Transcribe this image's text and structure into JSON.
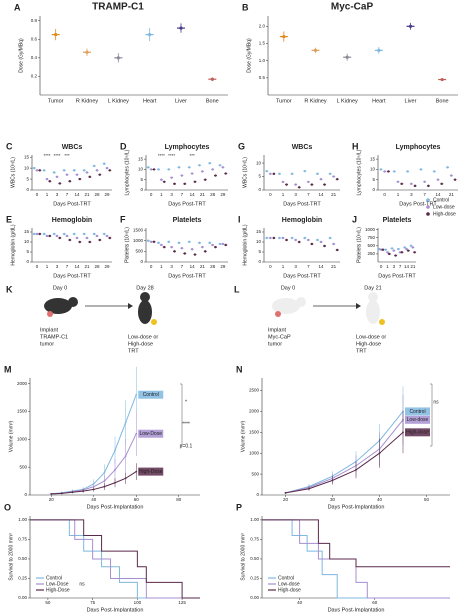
{
  "columns": [
    "TRAMP-C1",
    "Myc-CaP"
  ],
  "schematics": [
    {
      "label": "K",
      "start": "Day 0",
      "end": "Day 28",
      "implant": [
        "Implant",
        "TRAMP-C1",
        "tumor"
      ],
      "treat": [
        "Low-dose or",
        "High-dose",
        "TRT"
      ]
    },
    {
      "label": "L",
      "start": "Day 0",
      "end": "Day 21",
      "implant": [
        "Implant",
        "Myc-CaP",
        "tumor"
      ],
      "treat": [
        "Low-dose or",
        "High-dose",
        "TRT"
      ]
    }
  ],
  "chart_data": [
    {
      "type": "dot",
      "label": "A",
      "ylabel": "Dose (Gy/MBq)",
      "categories": [
        "Tumor",
        "R Kidney",
        "L Kidney",
        "Heart",
        "Liver",
        "Bone"
      ],
      "values": [
        0.65,
        0.46,
        0.4,
        0.65,
        0.72,
        0.17
      ],
      "errors": [
        0.06,
        0.04,
        0.05,
        0.07,
        0.05,
        0.02
      ],
      "colors": [
        "#e08a1e",
        "#e0a060",
        "#8a8a9a",
        "#7fb8e0",
        "#4a3a8a",
        "#c0605a"
      ],
      "ylim": [
        0,
        0.85
      ],
      "yticks": [
        0.2,
        0.4,
        0.6,
        0.8
      ]
    },
    {
      "type": "dot",
      "label": "B",
      "ylabel": "Dose (Gy/MBq)",
      "categories": [
        "Tumor",
        "R Kidney",
        "L Kidney",
        "Heart",
        "Liver",
        "Bone"
      ],
      "values": [
        1.7,
        1.3,
        1.1,
        1.3,
        2.0,
        0.45
      ],
      "errors": [
        0.15,
        0.08,
        0.1,
        0.1,
        0.1,
        0.04
      ],
      "colors": [
        "#e08a1e",
        "#e0a060",
        "#8a8a9a",
        "#7fb8e0",
        "#4a3a8a",
        "#c0605a"
      ],
      "ylim": [
        0,
        2.3
      ],
      "yticks": [
        {
          "value": 0.5,
          "label": "0.5"
        },
        {
          "value": 1,
          "label": "1.0"
        },
        {
          "value": 1.5,
          "label": "1.5"
        },
        {
          "value": 2,
          "label": "2.0"
        }
      ]
    },
    {
      "type": "groupdot",
      "label": "C",
      "title": "WBCs",
      "ylabel": "WBCs (10⁹/L)",
      "xlabel": "Days Post-TRT",
      "categories": [
        "0",
        "1",
        "3",
        "7",
        "14",
        "21",
        "28",
        "29"
      ],
      "ylim": [
        0,
        16
      ],
      "yticks": [
        0,
        5,
        10,
        15
      ],
      "series": [
        {
          "name": "Control",
          "color": "#7fb8e0",
          "values": [
            10,
            9,
            8,
            9,
            9,
            9,
            11,
            12
          ]
        },
        {
          "name": "Low-dose",
          "color": "#a58fd0",
          "values": [
            9,
            5,
            6,
            7,
            7,
            8,
            9,
            10
          ]
        },
        {
          "name": "High-dose",
          "color": "#5a2a4a",
          "values": [
            9,
            4,
            3,
            4,
            5,
            6,
            7,
            9
          ]
        }
      ],
      "annotations": [
        {
          "category": "1",
          "text": "****"
        },
        {
          "category": "3",
          "text": "****"
        },
        {
          "category": "7",
          "text": "***"
        }
      ]
    },
    {
      "type": "groupdot",
      "label": "D",
      "title": "Lymphocytes",
      "ylabel": "Lymphocytes (10⁹/L)",
      "xlabel": "Days Post-TRT",
      "categories": [
        "0",
        "1",
        "3",
        "7",
        "14",
        "21",
        "28",
        "29"
      ],
      "ylim": [
        0,
        17
      ],
      "yticks": [
        0,
        5,
        10,
        15
      ],
      "series": [
        {
          "name": "Control",
          "color": "#7fb8e0",
          "values": [
            11,
            10,
            10,
            11,
            11,
            12,
            13,
            12
          ]
        },
        {
          "name": "Low-dose",
          "color": "#a58fd0",
          "values": [
            10,
            5,
            6,
            7,
            8,
            9,
            10,
            11
          ]
        },
        {
          "name": "High-dose",
          "color": "#5a2a4a",
          "values": [
            10,
            4,
            3,
            3,
            4,
            5,
            7,
            8
          ]
        }
      ],
      "annotations": [
        {
          "category": "1",
          "text": "****"
        },
        {
          "category": "3",
          "text": "****"
        },
        {
          "category": "14",
          "text": "***"
        }
      ]
    },
    {
      "type": "groupdot",
      "label": "G",
      "title": "WBCs",
      "ylabel": "WBCs (10⁹/L)",
      "xlabel": "Days Post-TRT",
      "categories": [
        "0",
        "1",
        "3",
        "7",
        "14",
        "21"
      ],
      "ylim": [
        0,
        13
      ],
      "yticks": [
        0,
        5,
        10
      ],
      "series": [
        {
          "name": "Control",
          "color": "#7fb8e0",
          "values": [
            7,
            6,
            6,
            7,
            6,
            6
          ]
        },
        {
          "name": "Low-dose",
          "color": "#a58fd0",
          "values": [
            6,
            3,
            2,
            3,
            4,
            5
          ]
        },
        {
          "name": "High-dose",
          "color": "#5a2a4a",
          "values": [
            6,
            2,
            1,
            2,
            2,
            4
          ]
        }
      ]
    },
    {
      "type": "groupdot",
      "label": "H",
      "title": "Lymphocytes",
      "ylabel": "Lymphocytes (10⁹/L)",
      "xlabel": "Days Post-TRT",
      "categories": [
        "0",
        "1",
        "3",
        "7",
        "14",
        "21"
      ],
      "ylim": [
        0,
        17
      ],
      "yticks": [
        0,
        5,
        10,
        15
      ],
      "series": [
        {
          "name": "Control",
          "color": "#7fb8e0",
          "values": [
            10,
            9,
            9,
            10,
            9,
            11
          ]
        },
        {
          "name": "Low-dose",
          "color": "#a58fd0",
          "values": [
            9,
            4,
            3,
            4,
            5,
            7
          ]
        },
        {
          "name": "High-dose",
          "color": "#5a2a4a",
          "values": [
            9,
            3,
            2,
            2,
            3,
            5
          ]
        }
      ]
    },
    {
      "type": "groupdot",
      "label": "E",
      "title": "Hemoglobin",
      "ylabel": "Hemoglobin (g/dL)",
      "xlabel": "Days Post-TRT",
      "categories": [
        "0",
        "1",
        "3",
        "7",
        "14",
        "21",
        "28",
        "29"
      ],
      "ylim": [
        0,
        17
      ],
      "yticks": [
        0,
        5,
        10,
        15
      ],
      "series": [
        {
          "name": "Control",
          "color": "#7fb8e0",
          "values": [
            14,
            14,
            14,
            14,
            14,
            14,
            14,
            14
          ]
        },
        {
          "name": "Low-dose",
          "color": "#a58fd0",
          "values": [
            14,
            13,
            13,
            13,
            12,
            12,
            13,
            13
          ]
        },
        {
          "name": "High-dose",
          "color": "#5a2a4a",
          "values": [
            14,
            13,
            12,
            11,
            10,
            10,
            11,
            12
          ]
        }
      ]
    },
    {
      "type": "groupdot",
      "label": "F",
      "title": "Platelets",
      "ylabel": "Platelets (10⁹/L)",
      "xlabel": "Days Post-TRT",
      "categories": [
        "0",
        "1",
        "3",
        "7",
        "14",
        "21",
        "28",
        "29"
      ],
      "ylim": [
        0,
        1600
      ],
      "yticks": [
        0,
        500,
        1000,
        1500
      ],
      "series": [
        {
          "name": "Control",
          "color": "#7fb8e0",
          "values": [
            1000,
            900,
            950,
            900,
            950,
            900,
            900,
            850
          ]
        },
        {
          "name": "Low-dose",
          "color": "#a58fd0",
          "values": [
            950,
            800,
            700,
            650,
            600,
            700,
            800,
            850
          ]
        },
        {
          "name": "High-dose",
          "color": "#5a2a4a",
          "values": [
            950,
            700,
            500,
            400,
            350,
            500,
            700,
            800
          ]
        }
      ]
    },
    {
      "type": "groupdot",
      "label": "I",
      "title": "Hemoglobin",
      "ylabel": "Hemoglobin (g/dL)",
      "xlabel": "Days Post-TRT",
      "categories": [
        "0",
        "1",
        "3",
        "7",
        "14",
        "21"
      ],
      "ylim": [
        0,
        17
      ],
      "yticks": [
        0,
        5,
        10,
        15
      ],
      "series": [
        {
          "name": "Control",
          "color": "#7fb8e0",
          "values": [
            12,
            12,
            12,
            12,
            11,
            12
          ]
        },
        {
          "name": "Low-dose",
          "color": "#a58fd0",
          "values": [
            12,
            12,
            11,
            11,
            10,
            9
          ]
        },
        {
          "name": "High-dose",
          "color": "#5a2a4a",
          "values": [
            12,
            11,
            10,
            9,
            8,
            6
          ]
        }
      ]
    },
    {
      "type": "groupdot",
      "label": "J",
      "title": "Platelets",
      "ylabel": "Platelets (10⁹/L)",
      "xlabel": "Days Post-TRT",
      "legend": "right",
      "categories": [
        "0",
        "1",
        "3",
        "7",
        "14",
        "21"
      ],
      "ylim": [
        0,
        1050
      ],
      "yticks": [
        250,
        500,
        750,
        1000
      ],
      "series": [
        {
          "name": "Control",
          "color": "#7fb8e0",
          "values": [
            400,
            380,
            420,
            400,
            450,
            500
          ]
        },
        {
          "name": "Low-dose",
          "color": "#a58fd0",
          "values": [
            380,
            300,
            350,
            300,
            400,
            450
          ]
        },
        {
          "name": "High-dose",
          "color": "#5a2a4a",
          "values": [
            380,
            250,
            200,
            300,
            350,
            300
          ]
        }
      ]
    },
    {
      "type": "line",
      "label": "M",
      "ylabel": "Volume (mm³)",
      "xlabel": "Days Post-Implantation",
      "x": [
        20,
        25,
        30,
        35,
        40,
        45,
        50,
        55,
        60
      ],
      "xlim": [
        10,
        90
      ],
      "xticks": [
        20,
        40,
        60,
        80
      ],
      "ylim": [
        0,
        2100
      ],
      "yticks": [
        0,
        500,
        1000,
        1500,
        2000
      ],
      "series": [
        {
          "name": "Control",
          "color": "#7fb8e0",
          "values": [
            20,
            40,
            70,
            100,
            200,
            400,
            800,
            1300,
            1800
          ],
          "errors": [
            10,
            20,
            30,
            40,
            80,
            150,
            250,
            400,
            500
          ]
        },
        {
          "name": "Low-Dose",
          "color": "#a58fd0",
          "values": [
            20,
            30,
            60,
            90,
            150,
            250,
            450,
            700,
            1100
          ],
          "errors": [
            10,
            15,
            25,
            35,
            60,
            100,
            200,
            300,
            400
          ]
        },
        {
          "name": "High-Dose",
          "color": "#5a2a4a",
          "values": [
            20,
            30,
            50,
            70,
            100,
            150,
            220,
            300,
            420
          ],
          "errors": [
            10,
            15,
            20,
            30,
            40,
            60,
            80,
            100,
            150
          ]
        }
      ],
      "annotations": [
        "*",
        "****",
        "p=0.1"
      ]
    },
    {
      "type": "line",
      "label": "N",
      "ylabel": "Volume (mm³)",
      "xlabel": "Days Post-Implantation",
      "x": [
        20,
        25,
        30,
        35,
        40,
        45
      ],
      "xlim": [
        15,
        55
      ],
      "xticks": [
        20,
        30,
        40,
        50
      ],
      "ylim": [
        0,
        2800
      ],
      "yticks": [
        0,
        500,
        1000,
        1500,
        2000,
        2500
      ],
      "series": [
        {
          "name": "Control",
          "color": "#7fb8e0",
          "values": [
            50,
            200,
            450,
            800,
            1300,
            2000
          ],
          "errors": [
            20,
            60,
            120,
            250,
            400,
            600
          ]
        },
        {
          "name": "Low-dose",
          "color": "#a58fd0",
          "values": [
            50,
            180,
            400,
            700,
            1100,
            1800
          ],
          "errors": [
            20,
            60,
            120,
            250,
            400,
            600
          ]
        },
        {
          "name": "High-dose",
          "color": "#5a2a4a",
          "values": [
            50,
            150,
            350,
            600,
            1000,
            1500
          ],
          "errors": [
            20,
            50,
            100,
            200,
            350,
            500
          ]
        }
      ],
      "annotations": [
        "ns"
      ]
    },
    {
      "type": "step",
      "label": "O",
      "ylabel": "Survival to 2000 mm³",
      "xlabel": "Days Post-Implantation",
      "xlim": [
        40,
        135
      ],
      "xticks": [
        50,
        75,
        100,
        125
      ],
      "ylim": [
        0,
        1.05
      ],
      "yticks": [
        {
          "value": 0,
          "label": "0.00"
        },
        {
          "value": 0.25,
          "label": "0.25"
        },
        {
          "value": 0.5,
          "label": "0.50"
        },
        {
          "value": 0.75,
          "label": "0.75"
        },
        {
          "value": 1,
          "label": "1.00"
        }
      ],
      "series": [
        {
          "name": "Control",
          "color": "#7fb8e0",
          "x": [
            40,
            62,
            70,
            80,
            90,
            100
          ],
          "values": [
            1,
            0.8,
            0.6,
            0.4,
            0.2,
            0
          ]
        },
        {
          "name": "Low-Dose",
          "color": "#a58fd0",
          "x": [
            40,
            65,
            75,
            85,
            105
          ],
          "values": [
            1,
            0.75,
            0.5,
            0.25,
            0
          ]
        },
        {
          "name": "High-Dose",
          "color": "#5a2a4a",
          "x": [
            40,
            70,
            80,
            100,
            105,
            125
          ],
          "values": [
            1,
            0.8,
            0.6,
            0.4,
            0.2,
            0
          ]
        }
      ],
      "annotations": [
        "ns"
      ]
    },
    {
      "type": "step",
      "label": "P",
      "ylabel": "Survival to 2000 mm³",
      "xlabel": "Days Post-Implantation",
      "xlim": [
        30,
        80
      ],
      "xticks": [
        40,
        60
      ],
      "ylim": [
        0,
        1.05
      ],
      "yticks": [
        {
          "value": 0,
          "label": "0.00"
        },
        {
          "value": 0.25,
          "label": "0.25"
        },
        {
          "value": 0.5,
          "label": "0.50"
        },
        {
          "value": 0.75,
          "label": "0.75"
        },
        {
          "value": 1,
          "label": "1.00"
        }
      ],
      "series": [
        {
          "name": "Control",
          "color": "#7fb8e0",
          "x": [
            30,
            38,
            42,
            46,
            50
          ],
          "values": [
            1,
            0.8,
            0.6,
            0.3,
            0
          ]
        },
        {
          "name": "Low-dose",
          "color": "#a58fd0",
          "x": [
            30,
            40,
            45,
            55,
            58
          ],
          "values": [
            1,
            0.7,
            0.5,
            0.2,
            0
          ]
        },
        {
          "name": "High-dose",
          "color": "#5a2a4a",
          "x": [
            30,
            45,
            48,
            55,
            78
          ],
          "values": [
            1,
            0.7,
            0.5,
            0.4,
            0.4
          ]
        }
      ]
    }
  ]
}
